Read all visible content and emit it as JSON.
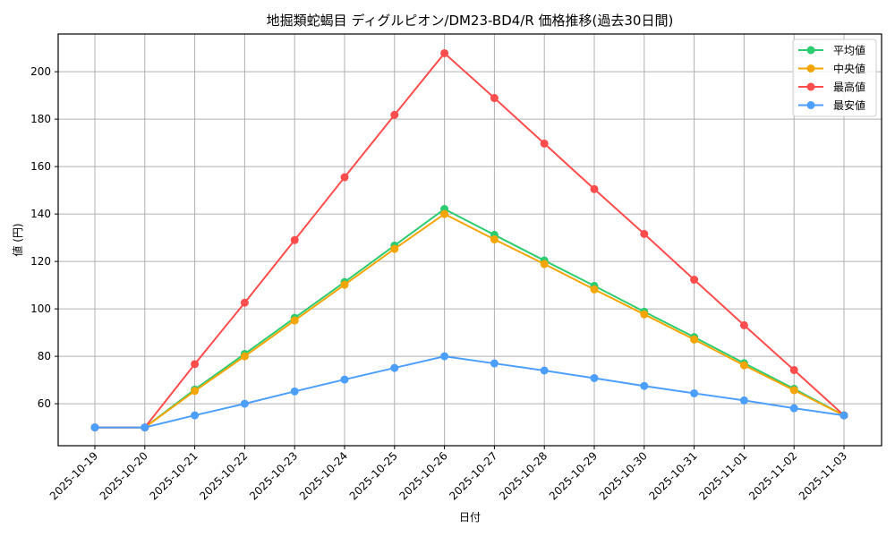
{
  "chart_data": {
    "type": "line",
    "title": "地掘類蛇蝎目 ディグルピオン/DM23-BD4/R 価格推移(過去30日間)",
    "xlabel": "日付",
    "ylabel": "値 (円)",
    "ylim": [
      42.3,
      215.9
    ],
    "yticks": [
      60,
      80,
      100,
      120,
      140,
      160,
      180,
      200
    ],
    "grid": true,
    "legend_position": "upper right",
    "x": [
      "2025-10-19",
      "2025-10-20",
      "2025-10-21",
      "2025-10-22",
      "2025-10-23",
      "2025-10-24",
      "2025-10-25",
      "2025-10-26",
      "2025-10-27",
      "2025-10-28",
      "2025-10-29",
      "2025-10-30",
      "2025-10-31",
      "2025-11-01",
      "2025-11-02",
      "2025-11-03"
    ],
    "series": [
      {
        "name": "平均値",
        "color": "#2ecc71",
        "values": [
          50,
          50,
          66.0,
          81.0,
          96.2,
          111.3,
          126.7,
          142.1,
          131.2,
          120.4,
          109.7,
          98.8,
          88.1,
          77.1,
          66.3,
          55.1
        ]
      },
      {
        "name": "中央値",
        "color": "#f5a500",
        "values": [
          50,
          50,
          65.4,
          80.0,
          95.1,
          110.2,
          125.3,
          140.0,
          129.3,
          118.9,
          108.2,
          97.7,
          87.1,
          76.2,
          65.7,
          55.1
        ]
      },
      {
        "name": "最高値",
        "color": "#ff4d4d",
        "values": [
          50,
          50,
          76.7,
          102.6,
          129.0,
          155.5,
          181.8,
          207.8,
          188.9,
          169.7,
          150.5,
          131.6,
          112.3,
          93.1,
          74.2,
          55.1
        ]
      },
      {
        "name": "最安値",
        "color": "#4d9fff",
        "values": [
          50,
          50,
          55.1,
          60.0,
          65.2,
          70.2,
          75.1,
          80.0,
          77.0,
          74.0,
          70.8,
          67.5,
          64.4,
          61.4,
          58.1,
          55.1
        ]
      }
    ]
  }
}
